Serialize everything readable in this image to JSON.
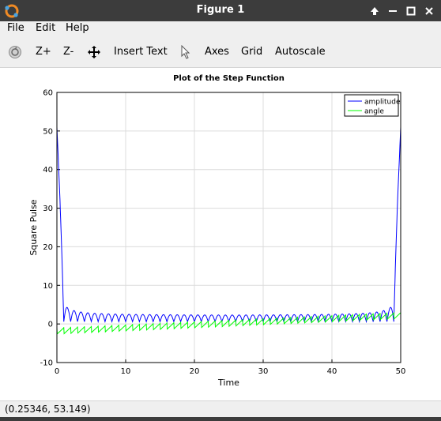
{
  "window": {
    "title": "Figure 1"
  },
  "menu": {
    "items": [
      "File",
      "Edit",
      "Help"
    ]
  },
  "toolbar": {
    "rotate_icon": "rotate-icon",
    "zoom_in": "Z+",
    "zoom_out": "Z-",
    "pan_icon": "pan-icon",
    "insert_text": "Insert Text",
    "select_icon": "pointer-icon",
    "axes": "Axes",
    "grid": "Grid",
    "autoscale": "Autoscale"
  },
  "status": {
    "coords": "(0.25346, 53.149)"
  },
  "colors": {
    "amplitude": "#0000ff",
    "angle": "#00ff00",
    "titlebar": "#3c3c3c"
  },
  "chart_data": {
    "type": "line",
    "title": "Plot of the Step Function",
    "xlabel": "Time",
    "ylabel": "Square Pulse",
    "xlim": [
      0,
      50
    ],
    "ylim": [
      -10,
      60
    ],
    "xticks": [
      0,
      10,
      20,
      30,
      40,
      50
    ],
    "yticks": [
      -10,
      0,
      10,
      20,
      30,
      40,
      50,
      60
    ],
    "grid": true,
    "legend_position": "top-right",
    "series": [
      {
        "name": "amplitude",
        "color": "#0000ff",
        "x": [
          0,
          0.5,
          1.0,
          1.5,
          2.0,
          2.5,
          3.0,
          3.5,
          4.0,
          5,
          6,
          7,
          8,
          10,
          12,
          15,
          20,
          25,
          30,
          35,
          38,
          40,
          42,
          44,
          45,
          46,
          47,
          47.5,
          48,
          48.5,
          49.0,
          49.5,
          50
        ],
        "values": [
          51,
          28,
          1,
          11,
          1,
          6.5,
          0.8,
          4.5,
          0.6,
          3,
          2.5,
          2,
          1.8,
          1.3,
          1.0,
          0.8,
          0.7,
          0.7,
          0.8,
          1.0,
          1.3,
          1.8,
          2.3,
          3,
          4.5,
          0.6,
          6.5,
          0.8,
          11,
          1,
          28,
          40,
          51
        ]
      },
      {
        "name": "angle",
        "color": "#00ff00",
        "x": [
          0,
          50
        ],
        "values": [
          -1.5,
          1.5
        ]
      }
    ]
  }
}
